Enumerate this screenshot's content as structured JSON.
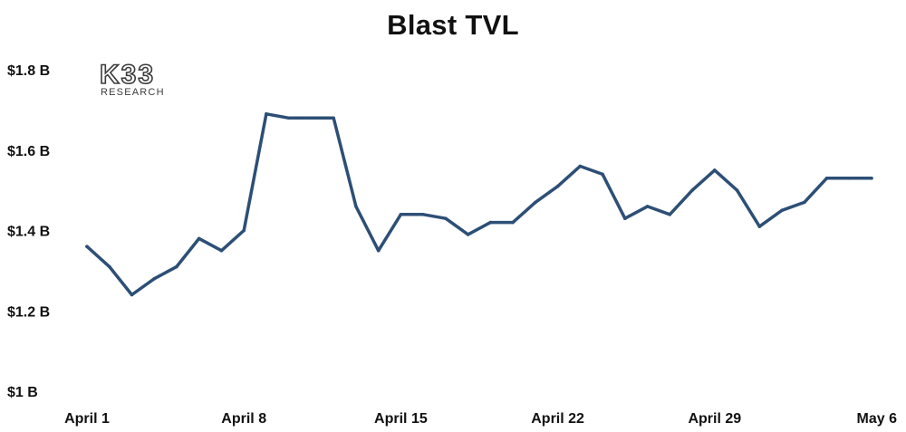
{
  "chart_data": {
    "type": "line",
    "title": "Blast TVL",
    "xlabel": "",
    "ylabel": "",
    "x_start": "2024-04-01",
    "x_end": "2024-05-06",
    "x_ticks": [
      {
        "label": "April 1",
        "date": "2024-04-01"
      },
      {
        "label": "April 8",
        "date": "2024-04-08"
      },
      {
        "label": "April 15",
        "date": "2024-04-15"
      },
      {
        "label": "April 22",
        "date": "2024-04-22"
      },
      {
        "label": "April 29",
        "date": "2024-04-29"
      },
      {
        "label": "May 6",
        "date": "2024-05-06"
      }
    ],
    "y_ticks": [
      {
        "label": "$1 B",
        "value": 1.0
      },
      {
        "label": "$1.2 B",
        "value": 1.2
      },
      {
        "label": "$1.4 B",
        "value": 1.4
      },
      {
        "label": "$1.6 B",
        "value": 1.6
      },
      {
        "label": "$1.8 B",
        "value": 1.8
      }
    ],
    "ylim": [
      1.0,
      1.8
    ],
    "grid": false,
    "series": [
      {
        "color": "#2d4f76",
        "x": [
          "2024-04-01",
          "2024-04-02",
          "2024-04-03",
          "2024-04-04",
          "2024-04-05",
          "2024-04-06",
          "2024-04-07",
          "2024-04-08",
          "2024-04-09",
          "2024-04-10",
          "2024-04-11",
          "2024-04-12",
          "2024-04-13",
          "2024-04-14",
          "2024-04-15",
          "2024-04-16",
          "2024-04-17",
          "2024-04-18",
          "2024-04-19",
          "2024-04-20",
          "2024-04-21",
          "2024-04-22",
          "2024-04-23",
          "2024-04-24",
          "2024-04-25",
          "2024-04-26",
          "2024-04-27",
          "2024-04-28",
          "2024-04-29",
          "2024-04-30",
          "2024-05-01",
          "2024-05-02",
          "2024-05-03",
          "2024-05-04",
          "2024-05-05",
          "2024-05-06"
        ],
        "values": [
          1.36,
          1.31,
          1.24,
          1.28,
          1.31,
          1.38,
          1.35,
          1.4,
          1.69,
          1.68,
          1.68,
          1.68,
          1.46,
          1.35,
          1.44,
          1.44,
          1.43,
          1.39,
          1.42,
          1.42,
          1.47,
          1.51,
          1.56,
          1.54,
          1.43,
          1.46,
          1.44,
          1.5,
          1.55,
          1.5,
          1.41,
          1.45,
          1.47,
          1.53,
          1.53,
          1.53
        ]
      }
    ]
  },
  "logo": {
    "main": "K33",
    "sub": "RESEARCH"
  }
}
